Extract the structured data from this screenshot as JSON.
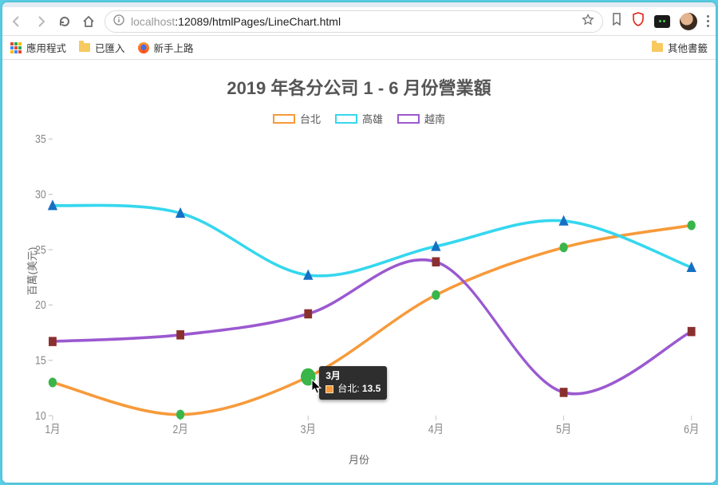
{
  "browser": {
    "url_host_faint": "localhost",
    "url_rest": ":12089/htmlPages/LineChart.html",
    "bookmarks": {
      "apps": "應用程式",
      "imported": "已匯入",
      "firefox_getting_started": "新手上路",
      "other": "其他書籤"
    }
  },
  "chart": {
    "title": "2019 年各分公司 1 - 6 月份營業額",
    "xlabel": "月份",
    "ylabel": "百萬(美元)",
    "categories": [
      "1月",
      "2月",
      "3月",
      "4月",
      "5月",
      "6月"
    ],
    "ylim": [
      10,
      35
    ],
    "ytick_step": 5,
    "background_color": "#ffffff",
    "axis_tick_color": "#c9c9c9",
    "axis_text_color": "#888888",
    "title_color": "#555555",
    "title_fontsize": 22,
    "label_fontsize": 13,
    "line_width": 3,
    "marker_size": 5,
    "marker_highlight_size": 9,
    "series": [
      {
        "name": "台北",
        "color": "#f79a3a",
        "marker": "circle",
        "marker_fill": "#39b54a",
        "values": [
          13.0,
          10.1,
          13.5,
          20.9,
          25.2,
          27.2
        ]
      },
      {
        "name": "高雄",
        "color": "#35d7ee",
        "marker": "triangle",
        "marker_fill": "#1670c4",
        "values": [
          29.0,
          28.3,
          22.7,
          25.3,
          27.6,
          23.4
        ]
      },
      {
        "name": "越南",
        "color": "#9b59d0",
        "marker": "square",
        "marker_fill": "#8a2f2f",
        "values": [
          16.7,
          17.3,
          19.2,
          23.9,
          12.1,
          17.6
        ]
      }
    ],
    "tooltip": {
      "category_index": 2,
      "series_index": 0,
      "category_label": "3月",
      "series_label": "台北",
      "value_text": "13.5"
    }
  }
}
